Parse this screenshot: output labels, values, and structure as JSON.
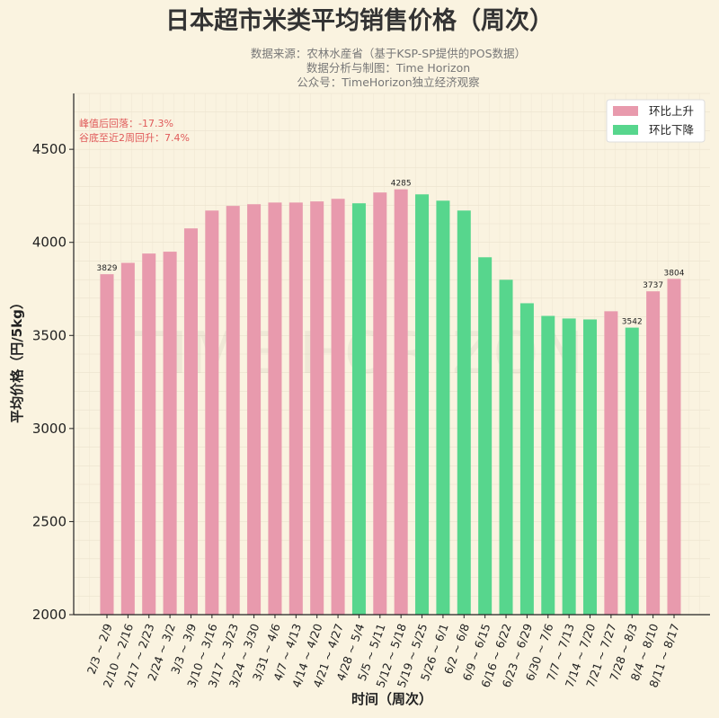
{
  "chart_data": {
    "type": "bar",
    "title": "日本超市米类平均销售价格（周次）",
    "subtitle": [
      "数据来源：农林水産省（基于KSP-SP提供的POS数据）",
      "数据分析与制图：Time Horizon",
      "公众号：TimeHorizon独立经济观察"
    ],
    "xlabel": "时间（周次）",
    "ylabel": "平均价格（円/5kg）",
    "ylim": [
      2000,
      4800
    ],
    "yticks": [
      2000,
      2500,
      3000,
      3500,
      4000,
      4500
    ],
    "grid": true,
    "legend_placement": "top-right",
    "watermark": "TIME HORIZON",
    "legend": [
      {
        "label": "环比上升",
        "color": "#e89aad"
      },
      {
        "label": "环比下降",
        "color": "#57d68d"
      }
    ],
    "annotations": [
      "峰值后回落：-17.3%",
      "谷底至近2周回升：7.4%"
    ],
    "categories": [
      "2/3 ~ 2/9",
      "2/10 ~ 2/16",
      "2/17 ~ 2/23",
      "2/24 ~ 3/2",
      "3/3 ~ 3/9",
      "3/10 ~ 3/16",
      "3/17 ~ 3/23",
      "3/24 ~ 3/30",
      "3/31 ~ 4/6",
      "4/7 ~ 4/13",
      "4/14 ~ 4/20",
      "4/21 ~ 4/27",
      "4/28 ~ 5/4",
      "5/5 ~ 5/11",
      "5/12 ~ 5/18",
      "5/19 ~ 5/25",
      "5/26 ~ 6/1",
      "6/2 ~ 6/8",
      "6/9 ~ 6/15",
      "6/16 ~ 6/22",
      "6/23 ~ 6/29",
      "6/30 ~ 7/6",
      "7/7 ~ 7/13",
      "7/14 ~ 7/20",
      "7/21 ~ 7/27",
      "7/28 ~ 8/3",
      "8/4 ~ 8/10",
      "8/11 ~ 8/17"
    ],
    "values": [
      3829,
      3890,
      3940,
      3950,
      4075,
      4171,
      4196,
      4205,
      4214,
      4214,
      4220,
      4234,
      4210,
      4268,
      4285,
      4258,
      4224,
      4171,
      3920,
      3799,
      3673,
      3605,
      3591,
      3586,
      3630,
      3542,
      3737,
      3804
    ],
    "direction": [
      "up",
      "up",
      "up",
      "up",
      "up",
      "up",
      "up",
      "up",
      "up",
      "up",
      "up",
      "up",
      "down",
      "up",
      "up",
      "down",
      "down",
      "down",
      "down",
      "down",
      "down",
      "down",
      "down",
      "down",
      "up",
      "down",
      "up",
      "up"
    ],
    "data_labels": {
      "0": "3829",
      "14": "4285",
      "25": "3542",
      "26": "3737",
      "27": "3804"
    },
    "colors": {
      "up": "#e89aad",
      "down": "#57d68d",
      "annotation": "#e05a5a",
      "background": "#faf3e0"
    }
  }
}
